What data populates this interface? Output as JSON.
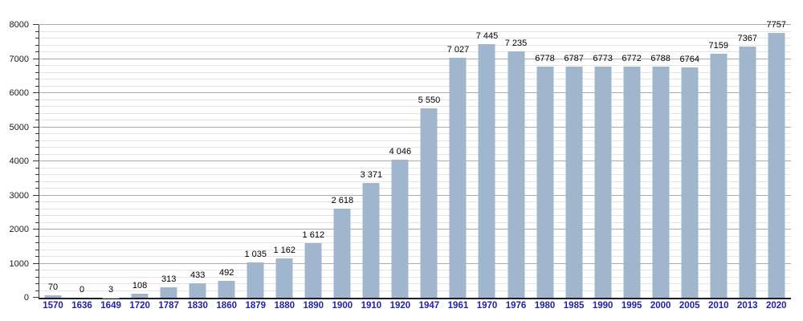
{
  "chart_data": {
    "type": "bar",
    "title": "",
    "xlabel": "",
    "ylabel": "",
    "categories": [
      "1570",
      "1636",
      "1649",
      "1720",
      "1787",
      "1830",
      "1860",
      "1879",
      "1880",
      "1890",
      "1900",
      "1910",
      "1920",
      "1947",
      "1961",
      "1970",
      "1976",
      "1980",
      "1985",
      "1990",
      "1995",
      "2000",
      "2005",
      "2010",
      "2013",
      "2020"
    ],
    "values": [
      70,
      0,
      3,
      108,
      313,
      433,
      492,
      1035,
      1162,
      1612,
      2618,
      3371,
      4046,
      5550,
      7027,
      7445,
      7235,
      6778,
      6787,
      6773,
      6772,
      6788,
      6764,
      7159,
      7367,
      7757
    ],
    "value_labels": [
      "70",
      "0",
      "3",
      "108",
      "313",
      "433",
      "492",
      "1 035",
      "1 162",
      "1 612",
      "2 618",
      "3 371",
      "4 046",
      "5 550",
      "7 027",
      "7 445",
      "7 235",
      "6778",
      "6787",
      "6773",
      "6772",
      "6788",
      "6764",
      "7159",
      "7367",
      "7757"
    ],
    "y_tick_labels": [
      "0",
      "1000",
      "2000",
      "3000",
      "4000",
      "5000",
      "6000",
      "7000",
      "8000"
    ],
    "ylim": [
      0,
      8000
    ],
    "ytick_step": 1000,
    "minor_grid_step": 200,
    "grid": true,
    "legend": null,
    "colors": {
      "background": "#ffffff",
      "bar_fill": "#a0b6cd",
      "category_label": "#2222aa",
      "value_label": "#000000",
      "axis": "#38383f",
      "x_axis": "#1c1c2e",
      "major_grid": "#aaaaaa",
      "minor_grid": "#e4e4e4"
    }
  }
}
